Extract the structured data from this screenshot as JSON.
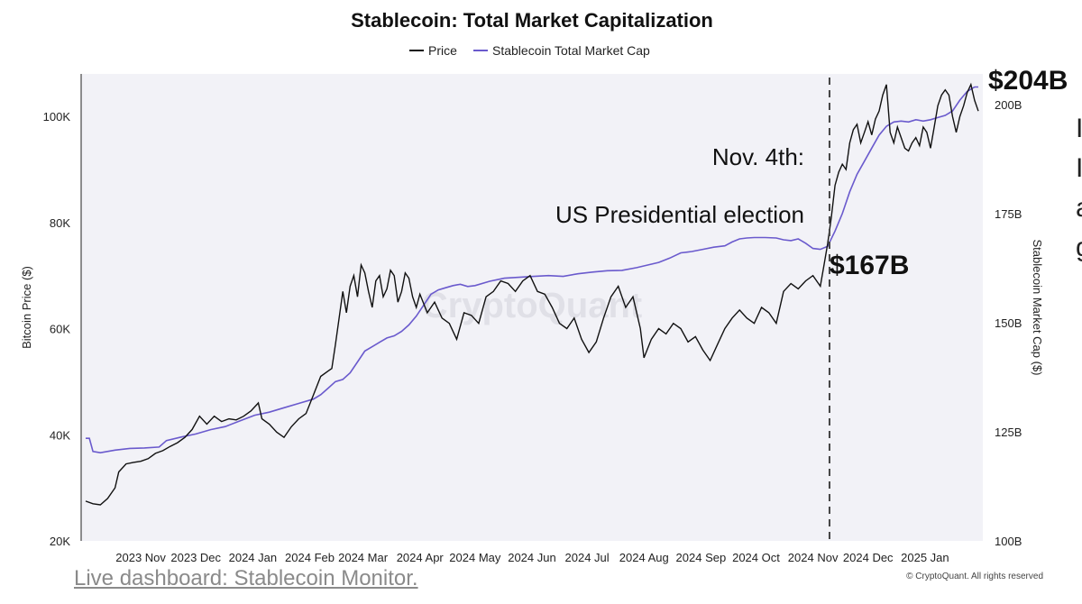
{
  "footer": {
    "link_text": "Live dashboard: Stablecoin Monitor."
  },
  "side_letters": [
    "I",
    "I",
    "a",
    "g"
  ],
  "chart_data": {
    "type": "line",
    "title": "Stablecoin: Total Market Capitalization",
    "legend": [
      "Price",
      "Stablecoin Total Market Cap"
    ],
    "legend_placement": "top-center",
    "ylabel_left": "Bitcoin Price ($)",
    "ylabel_right": "Stablecoin Market Cap ($)",
    "ylim_left": [
      20000,
      108000
    ],
    "ylim_right": [
      100,
      207
    ],
    "yticks_left": [
      {
        "value": 20000,
        "label": "20K"
      },
      {
        "value": 40000,
        "label": "40K"
      },
      {
        "value": 60000,
        "label": "60K"
      },
      {
        "value": 80000,
        "label": "80K"
      },
      {
        "value": 100000,
        "label": "100K"
      }
    ],
    "yticks_right": [
      {
        "value": 100,
        "label": "100B"
      },
      {
        "value": 125,
        "label": "125B"
      },
      {
        "value": 150,
        "label": "150B"
      },
      {
        "value": 175,
        "label": "175B"
      },
      {
        "value": 200,
        "label": "200B"
      }
    ],
    "xlim_days": [
      0,
      487
    ],
    "xticks": [
      {
        "day": 30,
        "label": "2023 Nov"
      },
      {
        "day": 60,
        "label": "2023 Dec"
      },
      {
        "day": 91,
        "label": "2024 Jan"
      },
      {
        "day": 122,
        "label": "2024 Feb"
      },
      {
        "day": 151,
        "label": "2024 Mar"
      },
      {
        "day": 182,
        "label": "2024 Apr"
      },
      {
        "day": 212,
        "label": "2024 May"
      },
      {
        "day": 243,
        "label": "2024 Jun"
      },
      {
        "day": 273,
        "label": "2024 Jul"
      },
      {
        "day": 304,
        "label": "2024 Aug"
      },
      {
        "day": 335,
        "label": "2024 Sep"
      },
      {
        "day": 365,
        "label": "2024 Oct"
      },
      {
        "day": 396,
        "label": "2024 Nov"
      },
      {
        "day": 426,
        "label": "2024 Dec"
      },
      {
        "day": 457,
        "label": "2025 Jan"
      }
    ],
    "series": [
      {
        "name": "Price",
        "color": "#111111",
        "axis": "left",
        "points": [
          [
            0,
            27500
          ],
          [
            4,
            27000
          ],
          [
            8,
            26800
          ],
          [
            12,
            28000
          ],
          [
            16,
            30000
          ],
          [
            18,
            33000
          ],
          [
            22,
            34500
          ],
          [
            26,
            34800
          ],
          [
            30,
            35000
          ],
          [
            34,
            35500
          ],
          [
            38,
            36500
          ],
          [
            42,
            37000
          ],
          [
            46,
            37800
          ],
          [
            50,
            38500
          ],
          [
            54,
            39500
          ],
          [
            58,
            41000
          ],
          [
            62,
            43500
          ],
          [
            66,
            42000
          ],
          [
            70,
            43500
          ],
          [
            74,
            42500
          ],
          [
            78,
            43000
          ],
          [
            82,
            42800
          ],
          [
            86,
            43500
          ],
          [
            90,
            44500
          ],
          [
            94,
            46000
          ],
          [
            96,
            43000
          ],
          [
            100,
            42000
          ],
          [
            104,
            40500
          ],
          [
            108,
            39500
          ],
          [
            112,
            41500
          ],
          [
            116,
            43000
          ],
          [
            120,
            44000
          ],
          [
            124,
            47500
          ],
          [
            128,
            51000
          ],
          [
            132,
            52000
          ],
          [
            134,
            52500
          ],
          [
            136,
            57000
          ],
          [
            138,
            62000
          ],
          [
            140,
            67000
          ],
          [
            142,
            63000
          ],
          [
            144,
            68000
          ],
          [
            146,
            70000
          ],
          [
            148,
            66000
          ],
          [
            150,
            72000
          ],
          [
            152,
            70500
          ],
          [
            154,
            67000
          ],
          [
            156,
            64000
          ],
          [
            158,
            69000
          ],
          [
            160,
            70000
          ],
          [
            162,
            66000
          ],
          [
            164,
            67500
          ],
          [
            166,
            71000
          ],
          [
            168,
            70000
          ],
          [
            170,
            65000
          ],
          [
            172,
            67000
          ],
          [
            174,
            70500
          ],
          [
            176,
            69500
          ],
          [
            178,
            66000
          ],
          [
            180,
            64000
          ],
          [
            182,
            66500
          ],
          [
            186,
            63000
          ],
          [
            190,
            65000
          ],
          [
            194,
            62000
          ],
          [
            198,
            61000
          ],
          [
            202,
            58000
          ],
          [
            206,
            63000
          ],
          [
            210,
            62500
          ],
          [
            214,
            61000
          ],
          [
            218,
            66000
          ],
          [
            222,
            67000
          ],
          [
            226,
            69000
          ],
          [
            230,
            68500
          ],
          [
            234,
            67000
          ],
          [
            238,
            69000
          ],
          [
            242,
            70000
          ],
          [
            246,
            67000
          ],
          [
            250,
            66500
          ],
          [
            254,
            64000
          ],
          [
            258,
            61000
          ],
          [
            262,
            60000
          ],
          [
            266,
            62000
          ],
          [
            270,
            58000
          ],
          [
            274,
            55500
          ],
          [
            278,
            57500
          ],
          [
            282,
            62000
          ],
          [
            286,
            66000
          ],
          [
            290,
            68000
          ],
          [
            294,
            64000
          ],
          [
            298,
            66000
          ],
          [
            302,
            60000
          ],
          [
            304,
            54500
          ],
          [
            308,
            58000
          ],
          [
            312,
            60000
          ],
          [
            316,
            59000
          ],
          [
            320,
            61000
          ],
          [
            324,
            60000
          ],
          [
            328,
            57500
          ],
          [
            332,
            58500
          ],
          [
            336,
            56000
          ],
          [
            340,
            54000
          ],
          [
            344,
            57000
          ],
          [
            348,
            60000
          ],
          [
            352,
            62000
          ],
          [
            356,
            63500
          ],
          [
            360,
            62000
          ],
          [
            364,
            61000
          ],
          [
            368,
            64000
          ],
          [
            372,
            63000
          ],
          [
            376,
            61000
          ],
          [
            380,
            67000
          ],
          [
            384,
            68500
          ],
          [
            388,
            67500
          ],
          [
            392,
            69000
          ],
          [
            396,
            70000
          ],
          [
            398,
            69000
          ],
          [
            400,
            68000
          ],
          [
            402,
            72000
          ],
          [
            404,
            76000
          ],
          [
            406,
            81000
          ],
          [
            408,
            87000
          ],
          [
            410,
            89500
          ],
          [
            412,
            91000
          ],
          [
            414,
            90000
          ],
          [
            416,
            95000
          ],
          [
            418,
            97500
          ],
          [
            420,
            98500
          ],
          [
            422,
            95000
          ],
          [
            424,
            97000
          ],
          [
            426,
            99000
          ],
          [
            428,
            96500
          ],
          [
            430,
            99500
          ],
          [
            432,
            101000
          ],
          [
            434,
            104000
          ],
          [
            436,
            106000
          ],
          [
            438,
            97000
          ],
          [
            440,
            95000
          ],
          [
            442,
            98000
          ],
          [
            444,
            96000
          ],
          [
            446,
            94000
          ],
          [
            448,
            93500
          ],
          [
            450,
            95000
          ],
          [
            452,
            96000
          ],
          [
            454,
            94500
          ],
          [
            456,
            98000
          ],
          [
            458,
            97000
          ],
          [
            460,
            94000
          ],
          [
            462,
            98000
          ],
          [
            464,
            102000
          ],
          [
            466,
            104000
          ],
          [
            468,
            105000
          ],
          [
            470,
            104000
          ],
          [
            472,
            100000
          ],
          [
            474,
            97000
          ],
          [
            476,
            100000
          ],
          [
            478,
            102000
          ],
          [
            480,
            104500
          ],
          [
            482,
            106000
          ],
          [
            484,
            103000
          ],
          [
            486,
            101000
          ]
        ]
      },
      {
        "name": "Stablecoin Total Market Cap",
        "color": "#6a5acd",
        "axis": "right",
        "points": [
          [
            0,
            123.5
          ],
          [
            2,
            123.5
          ],
          [
            4,
            120.5
          ],
          [
            8,
            120.2
          ],
          [
            16,
            120.8
          ],
          [
            24,
            121.2
          ],
          [
            32,
            121.3
          ],
          [
            40,
            121.5
          ],
          [
            44,
            123
          ],
          [
            52,
            123.8
          ],
          [
            60,
            124.5
          ],
          [
            68,
            125.5
          ],
          [
            76,
            126.2
          ],
          [
            84,
            127.5
          ],
          [
            92,
            128.8
          ],
          [
            100,
            129.5
          ],
          [
            108,
            130.5
          ],
          [
            116,
            131.5
          ],
          [
            124,
            132.5
          ],
          [
            128,
            133.5
          ],
          [
            132,
            135
          ],
          [
            136,
            136.5
          ],
          [
            140,
            137
          ],
          [
            144,
            138.5
          ],
          [
            148,
            141
          ],
          [
            152,
            143.5
          ],
          [
            156,
            144.5
          ],
          [
            160,
            145.5
          ],
          [
            164,
            146.5
          ],
          [
            168,
            147
          ],
          [
            172,
            148
          ],
          [
            176,
            149.5
          ],
          [
            180,
            151.5
          ],
          [
            184,
            154
          ],
          [
            188,
            156.5
          ],
          [
            192,
            157.5
          ],
          [
            196,
            158
          ],
          [
            200,
            158.5
          ],
          [
            204,
            158.8
          ],
          [
            208,
            158.3
          ],
          [
            212,
            158.5
          ],
          [
            220,
            159.5
          ],
          [
            228,
            160.2
          ],
          [
            236,
            160.4
          ],
          [
            244,
            160.6
          ],
          [
            252,
            160.8
          ],
          [
            260,
            160.6
          ],
          [
            268,
            161.2
          ],
          [
            276,
            161.6
          ],
          [
            284,
            161.9
          ],
          [
            292,
            162
          ],
          [
            300,
            162.6
          ],
          [
            306,
            163.2
          ],
          [
            312,
            163.8
          ],
          [
            318,
            164.8
          ],
          [
            324,
            166
          ],
          [
            330,
            166.3
          ],
          [
            336,
            166.8
          ],
          [
            342,
            167.3
          ],
          [
            348,
            167.6
          ],
          [
            352,
            168.5
          ],
          [
            356,
            169.2
          ],
          [
            360,
            169.4
          ],
          [
            364,
            169.5
          ],
          [
            370,
            169.5
          ],
          [
            376,
            169.4
          ],
          [
            380,
            169
          ],
          [
            384,
            168.8
          ],
          [
            388,
            169.2
          ],
          [
            392,
            168.2
          ],
          [
            396,
            167
          ],
          [
            400,
            166.8
          ],
          [
            404,
            167.5
          ],
          [
            408,
            171
          ],
          [
            412,
            175
          ],
          [
            416,
            180
          ],
          [
            420,
            184
          ],
          [
            424,
            187
          ],
          [
            428,
            190
          ],
          [
            432,
            193
          ],
          [
            436,
            195
          ],
          [
            440,
            196
          ],
          [
            444,
            196.2
          ],
          [
            448,
            196
          ],
          [
            452,
            196.5
          ],
          [
            456,
            196.2
          ],
          [
            460,
            196.5
          ],
          [
            464,
            197
          ],
          [
            468,
            197.5
          ],
          [
            472,
            198.5
          ],
          [
            476,
            201
          ],
          [
            480,
            203
          ],
          [
            484,
            204
          ],
          [
            486,
            204
          ]
        ]
      }
    ],
    "annotations": [
      {
        "text": "Nov. 4th:",
        "kind": "event-label"
      },
      {
        "text": "US Presidential election",
        "kind": "event-label"
      },
      {
        "text": "$167B",
        "kind": "value-callout"
      },
      {
        "text": "$204B",
        "kind": "value-callout"
      }
    ],
    "event_line_day": 405,
    "callout_167_value": 167,
    "callout_204_value": 204,
    "watermark": "CryptoQuant",
    "copyright": "© CryptoQuant. All rights reserved"
  }
}
